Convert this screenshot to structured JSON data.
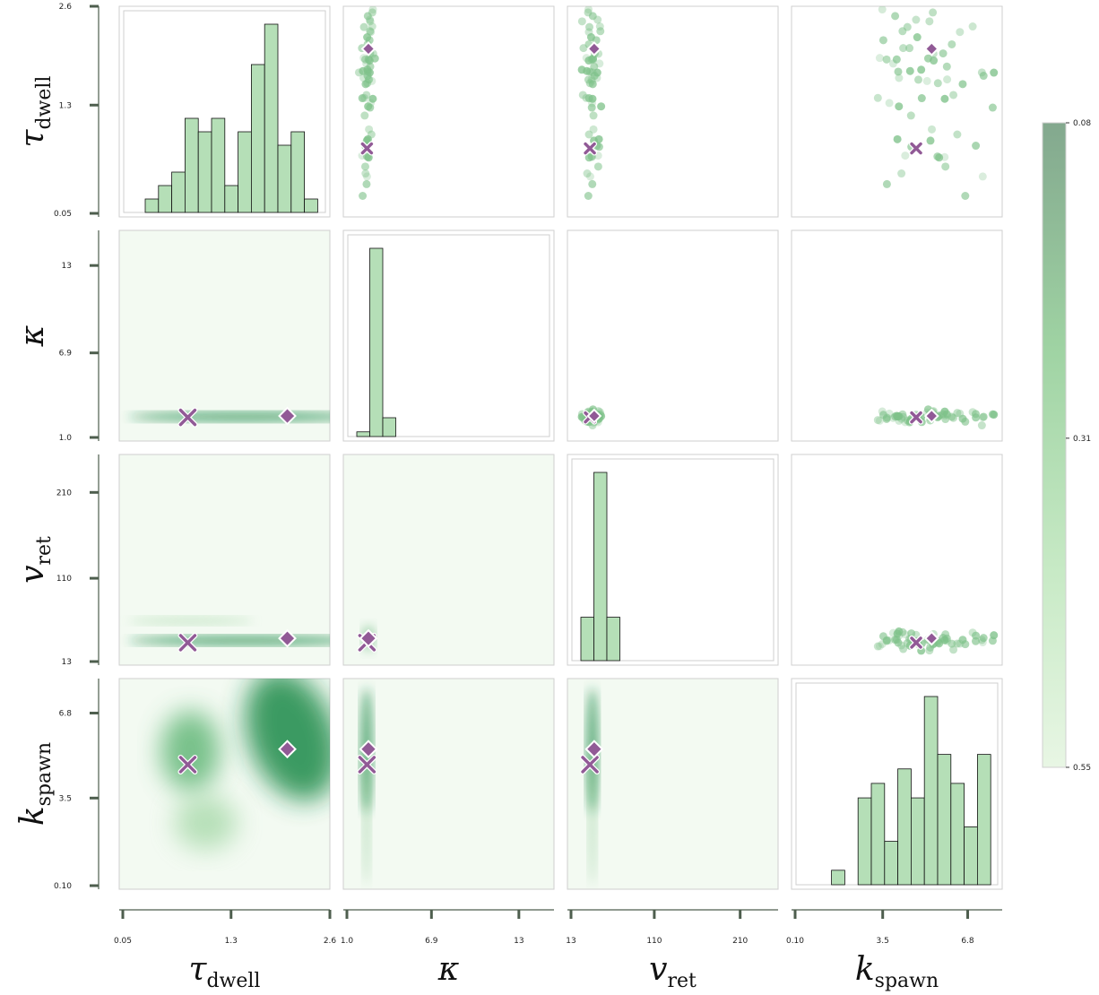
{
  "chart_data": {
    "type": "pair-plot",
    "description_level": "corner plot: histograms on diagonal, KDE heatmaps lower, scatter upper",
    "variables": [
      {
        "key": "tau",
        "symbol": "τ",
        "subscript": "dwell",
        "ticks": [
          "0.05",
          "1.3",
          "2.6"
        ],
        "tick_values": [
          0.05,
          1.3,
          2.6
        ],
        "range": [
          0.05,
          2.4
        ]
      },
      {
        "key": "kappa",
        "symbol": "κ",
        "subscript": "",
        "ticks": [
          "1.0",
          "6.9",
          "13"
        ],
        "tick_values": [
          1.0,
          6.9,
          13
        ],
        "range": [
          1.0,
          15.2
        ]
      },
      {
        "key": "vret",
        "symbol": "v",
        "subscript": "ret",
        "ticks": [
          "13",
          "110",
          "210"
        ],
        "tick_values": [
          13,
          110,
          210
        ],
        "range": [
          13,
          250
        ]
      },
      {
        "key": "kspawn",
        "symbol": "k",
        "subscript": "spawn",
        "ticks": [
          "0.10",
          "3.5",
          "6.8"
        ],
        "tick_values": [
          0.1,
          3.5,
          6.8
        ],
        "range": [
          0.1,
          8.0
        ]
      }
    ],
    "markers": {
      "cross": {
        "tau": 0.8,
        "kappa": 2.4,
        "vret": 35,
        "kspawn": 4.8
      },
      "diamond": {
        "tau": 1.95,
        "kappa": 2.5,
        "vret": 40,
        "kspawn": 5.4
      }
    },
    "histograms": {
      "tau": [
        1,
        2,
        3,
        7,
        6,
        7,
        2,
        6,
        11,
        14,
        5,
        6,
        1
      ],
      "kappa": [
        1,
        40,
        4
      ],
      "vret": [
        3,
        13,
        3
      ],
      "kspawn": [
        0,
        0,
        1,
        0,
        6,
        7,
        3,
        8,
        6,
        13,
        9,
        7,
        4,
        9
      ]
    },
    "colorbar": {
      "ticks": [
        "0.08",
        "0.31",
        "0.55"
      ],
      "tick_values": [
        0.08,
        0.31,
        0.55
      ],
      "orientation": "vertical",
      "colormap": "light-green"
    },
    "colors": {
      "hist_fill": "#b5dfb7",
      "kde_dark": "#1e8a48",
      "kde_bg": "#f3faf2",
      "scatter": "#7fc28a",
      "marker": "#915a96",
      "axis": "#4e5e4e"
    }
  }
}
